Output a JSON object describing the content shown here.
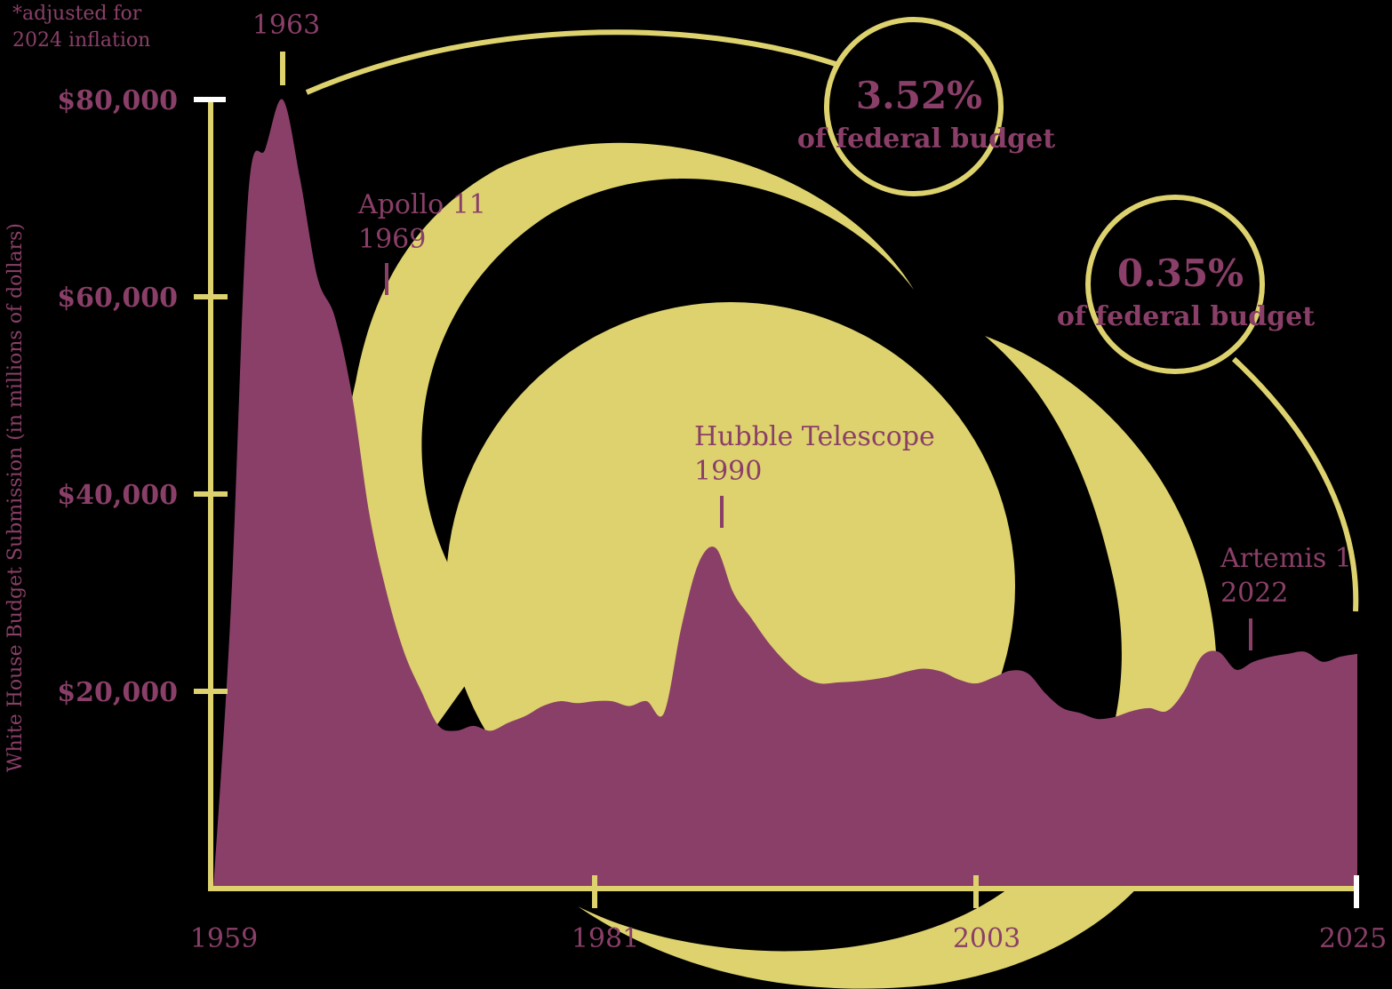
{
  "colors": {
    "accent": "#8a3f68",
    "moon": "#ddd26e",
    "background": "#000000"
  },
  "note": [
    "*adjusted for",
    "2024 inflation"
  ],
  "chart_data": {
    "type": "area",
    "title": "",
    "xlabel": "",
    "ylabel": "White House Budget Submission (in millions of dollars)",
    "xlim": [
      1959,
      2025
    ],
    "ylim": [
      0,
      80000
    ],
    "x_ticks": [
      "1959",
      "1981",
      "2003",
      "2025"
    ],
    "y_ticks": [
      "$80,000",
      "$60,000",
      "$40,000",
      "$20,000"
    ],
    "y_tick_values": [
      80000,
      60000,
      40000,
      20000
    ],
    "series": [
      {
        "x": [
          1959,
          1960,
          1961,
          1962,
          1963,
          1964,
          1965,
          1966,
          1967,
          1968,
          1969,
          1970,
          1971,
          1972,
          1973,
          1974,
          1975,
          1976,
          1977,
          1978,
          1979,
          1980,
          1981,
          1982,
          1983,
          1984,
          1985,
          1986,
          1987,
          1988,
          1989,
          1990,
          1991,
          1992,
          1993,
          1994,
          1995,
          1996,
          1997,
          1998,
          1999,
          2000,
          2001,
          2002,
          2003,
          2004,
          2005,
          2006,
          2007,
          2008,
          2009,
          2010,
          2011,
          2012,
          2013,
          2014,
          2015,
          2016,
          2017,
          2018,
          2019,
          2020,
          2021,
          2022,
          2023,
          2024,
          2025
        ],
        "values": [
          0,
          28000,
          70000,
          75000,
          80000,
          72000,
          62000,
          58000,
          50000,
          38000,
          30000,
          24000,
          20000,
          16500,
          16000,
          16500,
          16000,
          16800,
          17500,
          18500,
          19000,
          18800,
          19000,
          19000,
          18500,
          19000,
          17800,
          26500,
          33000,
          34500,
          30000,
          27500,
          25000,
          23000,
          21500,
          20800,
          20900,
          21000,
          21200,
          21500,
          22000,
          22300,
          22000,
          21200,
          20800,
          21400,
          22100,
          21800,
          19800,
          18300,
          17800,
          17200,
          17400,
          18000,
          18300,
          18000,
          20000,
          23500,
          24000,
          22200,
          23000,
          23500,
          23800,
          24000,
          23000,
          23500,
          23800
        ]
      }
    ],
    "annotations": [
      {
        "label": "1963",
        "year": 1963
      },
      {
        "label": "Apollo 11",
        "year_label": "1969",
        "year": 1969
      },
      {
        "label": "Hubble Telescope",
        "year_label": "1990",
        "year": 1990
      },
      {
        "label": "Artemis 1",
        "year_label": "2022",
        "year": 2022
      }
    ],
    "callouts": [
      {
        "value": "3.52%",
        "text": "of federal budget"
      },
      {
        "value": "0.35%",
        "text": "of federal budget"
      }
    ]
  }
}
